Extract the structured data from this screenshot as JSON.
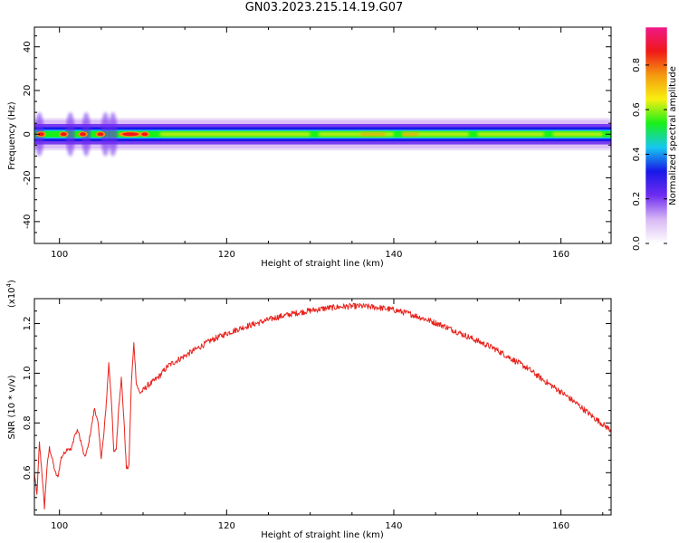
{
  "figure": {
    "title": "GN03.2023.215.14.19.G07"
  },
  "colors": {
    "snr_line": "#e8231d",
    "colormap": [
      "#ffffff",
      "#d8b8f4",
      "#6f2cf0",
      "#1818e8",
      "#16c8f0",
      "#18f018",
      "#f8f010",
      "#f49a10",
      "#f01818",
      "#f01888"
    ]
  },
  "chart_data": [
    {
      "type": "heatmap",
      "xlabel": "Height of straight line (km)",
      "ylabel": "Frequency (Hz)",
      "xlim": [
        97,
        166
      ],
      "ylim": [
        -50,
        49
      ],
      "xticks": [
        100,
        120,
        140,
        160
      ],
      "yticks": [
        -40,
        -20,
        0,
        20,
        40
      ],
      "ytick_labels": [
        "-40",
        "-20",
        "0",
        "20",
        "40"
      ],
      "colorbar": {
        "label": "Normalized spectral amplitude",
        "range": [
          0,
          0.97
        ],
        "ticks": [
          0.0,
          0.2,
          0.4,
          0.6,
          0.8
        ],
        "tick_labels": [
          "0.0",
          "0.2",
          "0.4",
          "0.6",
          "0.8"
        ]
      },
      "band": {
        "center_hz": 0,
        "core_halfwidth_hz": 1.5,
        "outer_halfwidth_hz": 6.5,
        "hotspots_km": [
          97.8,
          100.5,
          102.8,
          104.9,
          108.5,
          110.2
        ],
        "spikes_km": [
          97.6,
          101.3,
          103.2,
          105.5,
          106.4
        ]
      }
    },
    {
      "type": "line",
      "xlabel": "Height of straight line (km)",
      "ylabel": "SNR (10 * v/v)",
      "y_multiplier": "(x10",
      "y_multiplier_exponent": "4",
      "y_multiplier_close": ")",
      "xlim": [
        97,
        166
      ],
      "ylim": [
        0.43,
        1.3
      ],
      "xticks": [
        100,
        120,
        140,
        160
      ],
      "yticks": [
        0.6,
        0.8,
        1.0,
        1.2
      ],
      "ytick_labels": [
        "0.6",
        "0.8",
        "1.0",
        "1.2"
      ],
      "x": [
        97.0,
        97.3,
        97.6,
        97.9,
        98.2,
        98.5,
        98.8,
        99.1,
        99.5,
        99.8,
        100.2,
        100.6,
        101.0,
        101.4,
        101.8,
        102.2,
        102.6,
        103.0,
        103.4,
        103.8,
        104.2,
        104.6,
        105.0,
        105.3,
        105.6,
        105.9,
        106.2,
        106.5,
        106.8,
        107.1,
        107.4,
        107.7,
        108.0,
        108.3,
        108.6,
        108.9,
        109.2,
        109.6,
        110.0,
        110.5,
        111,
        112,
        113,
        114,
        115,
        116,
        117,
        118,
        119,
        120,
        122,
        124,
        126,
        128,
        130,
        132,
        134,
        136,
        138,
        140,
        142,
        144,
        146,
        148,
        150,
        152,
        154,
        156,
        158,
        160,
        162,
        164,
        166
      ],
      "y": [
        0.6,
        0.51,
        0.72,
        0.6,
        0.46,
        0.62,
        0.7,
        0.66,
        0.6,
        0.58,
        0.66,
        0.68,
        0.7,
        0.69,
        0.75,
        0.77,
        0.72,
        0.66,
        0.7,
        0.78,
        0.86,
        0.8,
        0.66,
        0.75,
        0.88,
        1.04,
        0.9,
        0.68,
        0.7,
        0.87,
        0.98,
        0.82,
        0.62,
        0.62,
        0.96,
        1.12,
        0.96,
        0.92,
        0.93,
        0.95,
        0.96,
        0.99,
        1.03,
        1.05,
        1.07,
        1.09,
        1.11,
        1.13,
        1.145,
        1.16,
        1.185,
        1.205,
        1.225,
        1.24,
        1.252,
        1.262,
        1.268,
        1.27,
        1.265,
        1.255,
        1.238,
        1.215,
        1.19,
        1.16,
        1.13,
        1.1,
        1.06,
        1.02,
        0.97,
        0.925,
        0.875,
        0.82,
        0.77
      ]
    }
  ]
}
